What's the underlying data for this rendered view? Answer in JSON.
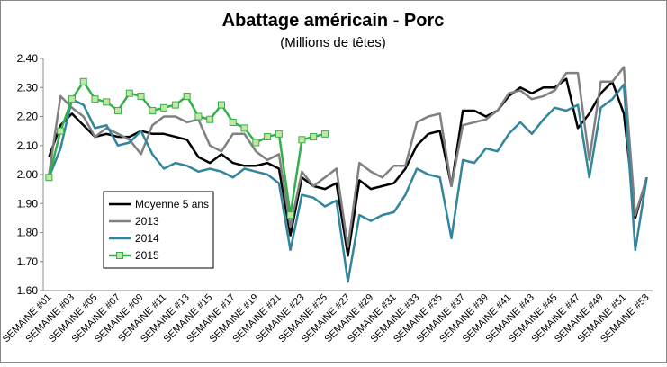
{
  "chart_data": {
    "type": "line",
    "title": "Abattage américain - Porc",
    "subtitle": "(Millions de têtes)",
    "categories": [
      "SEMAINE #01",
      null,
      "SEMAINE #03",
      null,
      "SEMAINE #05",
      null,
      "SEMAINE #07",
      null,
      "SEMAINE #09",
      null,
      "SEMAINE #11",
      null,
      "SEMAINE #13",
      null,
      "SEMAINE #15",
      null,
      "SEMAINE #17",
      null,
      "SEMAINE #19",
      null,
      "SEMAINE #21",
      null,
      "SEMAINE #23",
      null,
      "SEMAINE #25",
      null,
      "SEMAINE #27",
      null,
      "SEMAINE #29",
      null,
      "SEMAINE #31",
      null,
      "SEMAINE #33",
      null,
      "SEMAINE #35",
      null,
      "SEMAINE #37",
      null,
      "SEMAINE #39",
      null,
      "SEMAINE #41",
      null,
      "SEMAINE #43",
      null,
      "SEMAINE #45",
      null,
      "SEMAINE #47",
      null,
      "SEMAINE #49",
      null,
      "SEMAINE #51",
      null,
      "SEMAINE #53"
    ],
    "series": [
      {
        "name": "Moyenne 5 ans",
        "color": "#000000",
        "values": [
          2.06,
          2.17,
          2.21,
          2.17,
          2.13,
          2.14,
          2.13,
          2.13,
          2.15,
          2.14,
          2.14,
          2.13,
          2.12,
          2.06,
          2.04,
          2.07,
          2.04,
          2.03,
          2.03,
          2.04,
          2.02,
          1.79,
          1.99,
          1.96,
          1.95,
          1.97,
          1.72,
          1.98,
          1.95,
          1.96,
          1.97,
          2.02,
          2.1,
          2.14,
          2.15,
          1.96,
          2.22,
          2.22,
          2.2,
          2.22,
          2.27,
          2.3,
          2.28,
          2.3,
          2.3,
          2.33,
          2.16,
          2.21,
          2.28,
          2.32,
          2.21,
          1.85,
          1.99
        ]
      },
      {
        "name": "2013",
        "color": "#808080",
        "values": [
          2.0,
          2.27,
          2.23,
          2.2,
          2.13,
          2.16,
          2.14,
          2.12,
          2.07,
          2.17,
          2.2,
          2.2,
          2.18,
          2.19,
          2.1,
          2.08,
          2.14,
          2.14,
          2.08,
          2.05,
          2.07,
          1.82,
          2.01,
          1.96,
          1.99,
          2.02,
          1.75,
          2.04,
          2.01,
          1.99,
          2.03,
          2.03,
          2.18,
          2.2,
          2.21,
          1.96,
          2.17,
          2.18,
          2.19,
          2.22,
          2.28,
          2.29,
          2.26,
          2.27,
          2.29,
          2.35,
          2.35,
          2.05,
          2.32,
          2.32,
          2.37,
          1.86,
          1.99
        ]
      },
      {
        "name": "2014",
        "color": "#31859c",
        "values": [
          1.99,
          2.09,
          2.26,
          2.24,
          2.16,
          2.17,
          2.1,
          2.11,
          2.15,
          2.07,
          2.02,
          2.04,
          2.03,
          2.01,
          2.02,
          2.01,
          1.99,
          2.02,
          2.01,
          2.0,
          1.97,
          1.74,
          1.93,
          1.92,
          1.89,
          1.91,
          1.63,
          1.86,
          1.84,
          1.86,
          1.87,
          1.93,
          2.02,
          2.0,
          1.99,
          1.78,
          2.05,
          2.04,
          2.09,
          2.08,
          2.14,
          2.18,
          2.14,
          2.19,
          2.23,
          2.22,
          2.24,
          1.99,
          2.23,
          2.26,
          2.31,
          1.74,
          1.99
        ]
      },
      {
        "name": "2015",
        "color": "#33b04a",
        "marker": "square",
        "marker_fill": "#c4e6a4",
        "values": [
          1.99,
          2.15,
          2.26,
          2.32,
          2.26,
          2.25,
          2.22,
          2.28,
          2.27,
          2.22,
          2.23,
          2.24,
          2.27,
          2.2,
          2.19,
          2.24,
          2.18,
          2.16,
          2.11,
          2.13,
          2.14,
          1.86,
          2.12,
          2.13,
          2.14,
          null,
          null,
          null,
          null,
          null,
          null,
          null,
          null,
          null,
          null,
          null,
          null,
          null,
          null,
          null,
          null,
          null,
          null,
          null,
          null,
          null,
          null,
          null,
          null,
          null,
          null,
          null,
          null
        ]
      }
    ],
    "ylim": [
      1.6,
      2.4
    ],
    "yticks": [
      {
        "value": 1.6,
        "label": "1.60"
      },
      {
        "value": 1.7,
        "label": "1.70"
      },
      {
        "value": 1.8,
        "label": "1.80"
      },
      {
        "value": 1.9,
        "label": "1.90"
      },
      {
        "value": 2.0,
        "label": "2.00"
      },
      {
        "value": 2.1,
        "label": "2.10"
      },
      {
        "value": 2.2,
        "label": "2.20"
      },
      {
        "value": 2.3,
        "label": "2.30"
      },
      {
        "value": 2.4,
        "label": "2.40"
      }
    ],
    "grid": false,
    "legend": "left"
  }
}
